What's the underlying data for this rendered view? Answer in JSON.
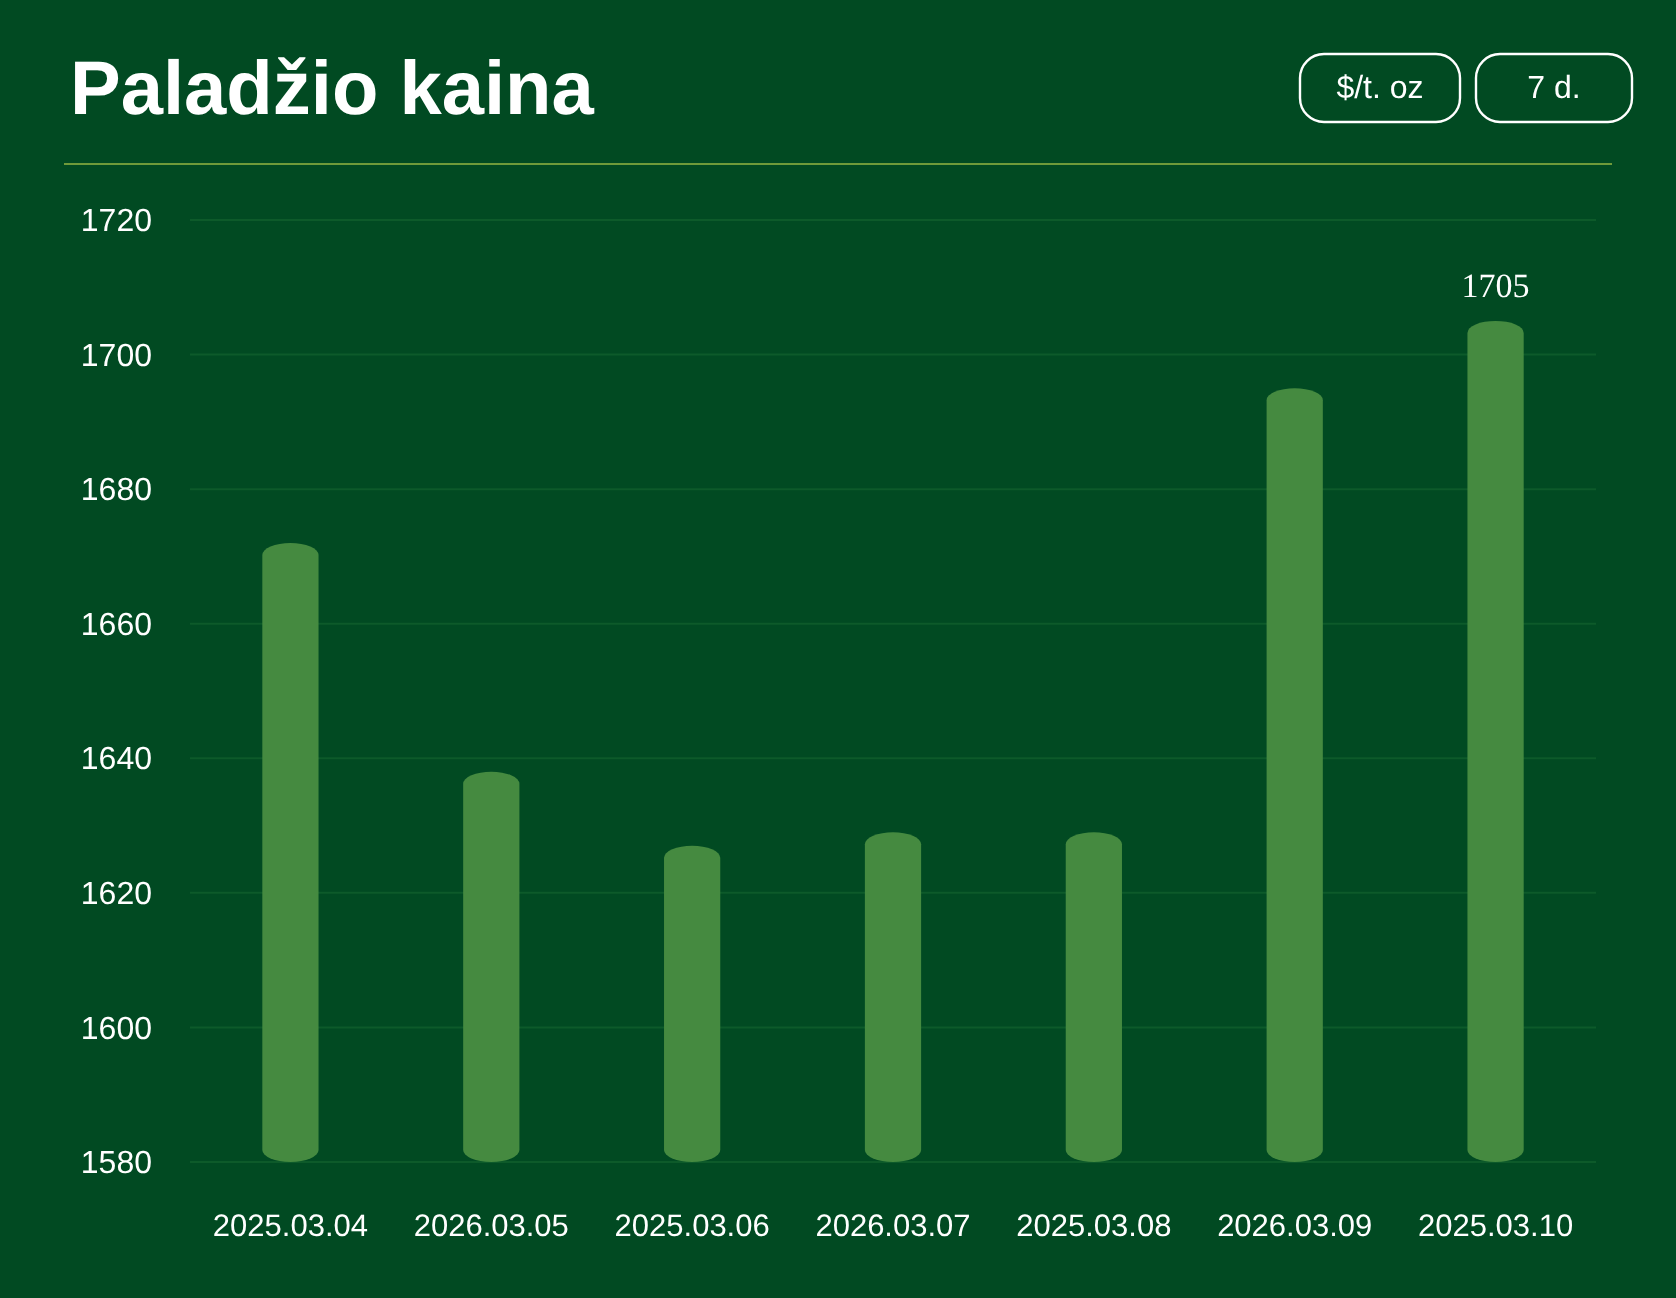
{
  "chart_data": {
    "type": "bar",
    "title": "Paladžio kaina",
    "annotations": [
      "$/t. oz",
      "7 d."
    ],
    "categories": [
      "2025.03.04",
      "2026.03.05",
      "2025.03.06",
      "2026.03.07",
      "2025.03.08",
      "2026.03.09",
      "2025.03.10"
    ],
    "values": [
      1672,
      1638,
      1627,
      1629,
      1629,
      1695,
      1705
    ],
    "value_labels": [
      null,
      null,
      null,
      null,
      null,
      null,
      "1705"
    ],
    "color": "#458a40",
    "ylim": [
      1580,
      1720
    ],
    "yticks": [
      1580,
      1600,
      1620,
      1640,
      1660,
      1680,
      1700,
      1720
    ],
    "grid": "y"
  }
}
